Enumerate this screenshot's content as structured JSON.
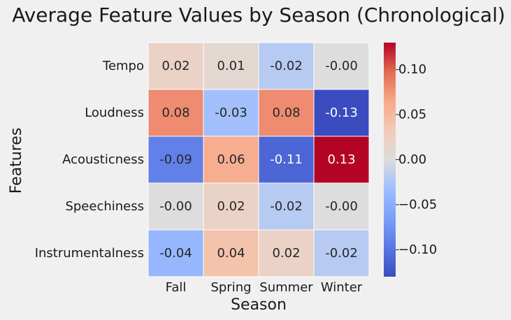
{
  "chart_data": {
    "type": "heatmap",
    "title": "Average Feature Values by Season (Chronological)",
    "xlabel": "Season",
    "ylabel": "Features",
    "x_categories": [
      "Fall",
      "Spring",
      "Summer",
      "Winter"
    ],
    "y_categories": [
      "Tempo",
      "Loudness",
      "Acousticness",
      "Speechiness",
      "Instrumentalness"
    ],
    "values": [
      [
        0.02,
        0.01,
        -0.02,
        -0.0
      ],
      [
        0.08,
        -0.03,
        0.08,
        -0.13
      ],
      [
        -0.09,
        0.06,
        -0.11,
        0.13
      ],
      [
        -0.0,
        0.02,
        -0.02,
        -0.0
      ],
      [
        -0.04,
        0.04,
        0.02,
        -0.02
      ]
    ],
    "value_labels": [
      [
        "0.02",
        "0.01",
        "-0.02",
        "-0.00"
      ],
      [
        "0.08",
        "-0.03",
        "0.08",
        "-0.13"
      ],
      [
        "-0.09",
        "0.06",
        "-0.11",
        "0.13"
      ],
      [
        "-0.00",
        "0.02",
        "-0.02",
        "-0.00"
      ],
      [
        "-0.04",
        "0.04",
        "0.02",
        "-0.02"
      ]
    ],
    "colormap": "coolwarm",
    "vmin": -0.13,
    "vmax": 0.13,
    "colorbar": {
      "ticks": [
        0.1,
        0.05,
        0.0,
        -0.05,
        -0.1
      ],
      "tick_labels": [
        "0.10",
        "0.05",
        "0.00",
        "−0.05",
        "−0.10"
      ]
    },
    "background_color": "#f0f0f0"
  }
}
